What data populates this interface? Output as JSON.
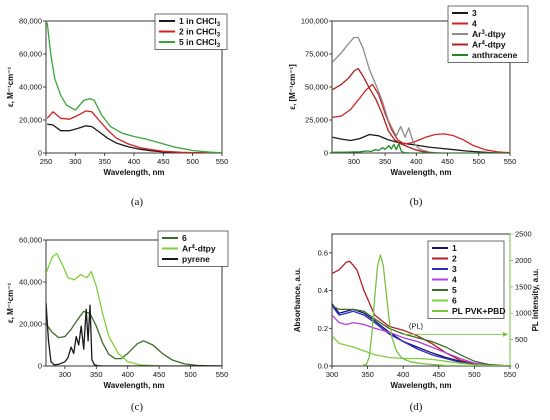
{
  "colors": {
    "black": "#1a1a1a",
    "red": "#d42020",
    "green": "#3aa63a",
    "gray": "#8c8c8c",
    "darkred": "#b02020",
    "darkgreen": "#1f8a1f",
    "olive": "#3d6b2a",
    "lime": "#7fd13a",
    "blue": "#2c2cc9",
    "navy": "#141466",
    "violet": "#b040d8",
    "lightgreen": "#7ecf3f",
    "plcolor": "#7ac142"
  },
  "chart_data": [
    {
      "panel": "(a)",
      "type": "line",
      "xlabel": "Wavelength, nm",
      "ylabel": "ε, M⁻¹cm⁻¹",
      "xlim": [
        250,
        550
      ],
      "ylim": [
        0,
        80000
      ],
      "xticks": [
        "250",
        "300",
        "350",
        "400",
        "450",
        "500",
        "550"
      ],
      "yticks": [
        "0",
        "20,000",
        "40,000",
        "60,000",
        "80,000"
      ],
      "legend": {
        "placement": "top-right"
      },
      "series": [
        {
          "name": "1 in CHCl3",
          "color": "black",
          "x": [
            252,
            262,
            275,
            290,
            305,
            318,
            328,
            340,
            355,
            370,
            390,
            410,
            430,
            450,
            480,
            510,
            550
          ],
          "y": [
            17500,
            17000,
            13500,
            13500,
            15000,
            16500,
            16000,
            13000,
            9000,
            6000,
            3800,
            2300,
            1300,
            700,
            300,
            100,
            0
          ]
        },
        {
          "name": "2 in CHCl3",
          "color": "red",
          "x": [
            252,
            262,
            275,
            290,
            305,
            318,
            328,
            340,
            355,
            370,
            390,
            410,
            430,
            450,
            480,
            510,
            550
          ],
          "y": [
            21000,
            25000,
            21000,
            20500,
            23000,
            25500,
            25000,
            20000,
            14000,
            9000,
            5500,
            3300,
            2000,
            1000,
            400,
            150,
            0
          ]
        },
        {
          "name": "5 in CHCl3",
          "color": "green",
          "x": [
            252,
            258,
            265,
            275,
            285,
            300,
            315,
            325,
            332,
            345,
            360,
            380,
            400,
            420,
            440,
            470,
            500,
            530,
            550
          ],
          "y": [
            79000,
            60000,
            45000,
            35000,
            29000,
            26000,
            32000,
            33000,
            32000,
            23000,
            16000,
            12000,
            10000,
            8500,
            6500,
            3500,
            1500,
            500,
            100
          ]
        }
      ]
    },
    {
      "panel": "(b)",
      "type": "line",
      "xlabel": "Wavelength, nm",
      "ylabel": "ε, [M⁻¹cm⁻¹]",
      "xlim": [
        265,
        550
      ],
      "ylim": [
        0,
        100000
      ],
      "xticks": [
        "300",
        "350",
        "400",
        "450",
        "500",
        "550"
      ],
      "yticks": [
        "0",
        "25,000",
        "50,000",
        "75,000",
        "100,000"
      ],
      "legend": {
        "placement": "top-right"
      },
      "series": [
        {
          "name": "3",
          "color": "black",
          "x": [
            266,
            280,
            295,
            310,
            325,
            340,
            355,
            370,
            385,
            400,
            420,
            440,
            460,
            480,
            500,
            520,
            550
          ],
          "y": [
            12000,
            10500,
            9500,
            11000,
            14000,
            13000,
            10000,
            8000,
            7000,
            6000,
            4500,
            3500,
            2500,
            1500,
            800,
            300,
            0
          ]
        },
        {
          "name": "4",
          "color": "red",
          "x": [
            266,
            280,
            295,
            310,
            320,
            330,
            340,
            350,
            360,
            370,
            380,
            390,
            400,
            415,
            430,
            445,
            460,
            475,
            490,
            510,
            530,
            550
          ],
          "y": [
            27000,
            28000,
            33000,
            42000,
            48000,
            52000,
            44000,
            30000,
            18000,
            10000,
            7000,
            7500,
            9000,
            12000,
            14000,
            14500,
            13000,
            10000,
            6000,
            2500,
            800,
            200
          ]
        },
        {
          "name": "Ar3-dtpy",
          "color": "gray",
          "x": [
            266,
            280,
            290,
            300,
            307,
            315,
            325,
            335,
            345,
            355,
            362,
            368,
            375,
            382,
            388,
            395,
            405,
            420,
            440
          ],
          "y": [
            69000,
            76000,
            82000,
            87500,
            87500,
            79000,
            63000,
            52000,
            40000,
            25000,
            18000,
            13000,
            20000,
            12000,
            19000,
            8000,
            3000,
            600,
            0
          ]
        },
        {
          "name": "Ar4-dtpy",
          "color": "darkred",
          "x": [
            266,
            280,
            292,
            300,
            307,
            315,
            325,
            335,
            345,
            355,
            365,
            375,
            385,
            395,
            410,
            430
          ],
          "y": [
            48000,
            52000,
            57000,
            62000,
            64000,
            58000,
            49000,
            41000,
            30000,
            17000,
            10000,
            7000,
            5000,
            3000,
            1000,
            0
          ]
        },
        {
          "name": "anthracene",
          "color": "darkgreen",
          "x": [
            266,
            290,
            310,
            320,
            328,
            334,
            340,
            346,
            350,
            356,
            360,
            364,
            368,
            372,
            376,
            380,
            390,
            550
          ],
          "y": [
            500,
            700,
            900,
            1500,
            1200,
            2500,
            2000,
            4000,
            2800,
            5500,
            3000,
            6500,
            2500,
            7000,
            1500,
            300,
            0,
            0
          ]
        }
      ]
    },
    {
      "panel": "(c)",
      "type": "line",
      "xlabel": "Wavelength, nm",
      "ylabel": "ε, M⁻¹cm⁻¹",
      "xlim": [
        270,
        550
      ],
      "ylim": [
        0,
        60000
      ],
      "xticks": [
        "300",
        "350",
        "400",
        "450",
        "500",
        "550"
      ],
      "yticks": [
        "0",
        "20,000",
        "40,000",
        "60,000"
      ],
      "legend": {
        "placement": "top-right"
      },
      "series": [
        {
          "name": "6",
          "color": "olive",
          "x": [
            270,
            280,
            290,
            300,
            310,
            320,
            330,
            340,
            350,
            360,
            370,
            380,
            390,
            400,
            415,
            425,
            440,
            455,
            470,
            490,
            510,
            530,
            550
          ],
          "y": [
            20000,
            16000,
            13500,
            14000,
            17500,
            22000,
            26000,
            25000,
            19000,
            11000,
            5500,
            3500,
            3500,
            6000,
            10500,
            12000,
            10000,
            6000,
            3000,
            1000,
            300,
            100,
            0
          ]
        },
        {
          "name": "Ar4-dtpy",
          "color": "lime",
          "x": [
            270,
            280,
            287,
            295,
            305,
            315,
            325,
            335,
            342,
            350,
            360,
            370,
            385,
            400,
            420,
            450
          ],
          "y": [
            44000,
            52000,
            53500,
            49000,
            42000,
            41000,
            43500,
            42000,
            45000,
            38000,
            25000,
            14000,
            6000,
            2000,
            500,
            0
          ]
        },
        {
          "name": "pyrene",
          "color": "black",
          "x": [
            270,
            274,
            278,
            283,
            290,
            300,
            305,
            310,
            314,
            318,
            322,
            326,
            330,
            334,
            337,
            340,
            343,
            347,
            352,
            360,
            380,
            550
          ],
          "y": [
            30000,
            12000,
            2000,
            500,
            800,
            2000,
            4000,
            9000,
            6000,
            14000,
            10000,
            19000,
            8000,
            27000,
            12000,
            29000,
            3000,
            600,
            200,
            0,
            0,
            0
          ]
        }
      ]
    },
    {
      "panel": "(d)",
      "type": "line",
      "xlabel": "Wavelength, nm",
      "ylabel": "Absorbance, a.u.",
      "ylabel2": "PL intensity, a.u.",
      "xlim": [
        300,
        550
      ],
      "ylim": [
        0,
        0.7
      ],
      "y2lim": [
        0,
        2500
      ],
      "xticks": [
        "300",
        "350",
        "400",
        "450",
        "500",
        "550"
      ],
      "yticks": [
        "0.0",
        "0.2",
        "0.4",
        "0.6"
      ],
      "y2ticks": [
        "0",
        "500",
        "1000",
        "1500",
        "2000",
        "2500"
      ],
      "legend": {
        "placement": "top-right"
      },
      "annotation": "(PL)",
      "series": [
        {
          "name": "1",
          "color": "navy",
          "x": [
            300,
            310,
            320,
            330,
            345,
            360,
            380,
            400,
            420,
            440,
            460,
            480,
            500,
            520,
            550
          ],
          "y": [
            0.33,
            0.28,
            0.29,
            0.3,
            0.28,
            0.24,
            0.18,
            0.13,
            0.1,
            0.07,
            0.045,
            0.025,
            0.01,
            0.004,
            0.0
          ]
        },
        {
          "name": "2",
          "color": "darkred",
          "x": [
            300,
            310,
            320,
            325,
            335,
            345,
            360,
            380,
            400,
            420,
            440,
            460,
            480,
            500,
            520,
            550
          ],
          "y": [
            0.49,
            0.51,
            0.55,
            0.555,
            0.51,
            0.4,
            0.27,
            0.21,
            0.19,
            0.16,
            0.12,
            0.07,
            0.03,
            0.01,
            0.003,
            0.0
          ]
        },
        {
          "name": "3",
          "color": "blue",
          "x": [
            300,
            310,
            320,
            330,
            345,
            360,
            380,
            400,
            420,
            440,
            460,
            480,
            500,
            520,
            550
          ],
          "y": [
            0.32,
            0.27,
            0.28,
            0.29,
            0.27,
            0.23,
            0.17,
            0.13,
            0.09,
            0.06,
            0.04,
            0.02,
            0.008,
            0.003,
            0.0
          ]
        },
        {
          "name": "4",
          "color": "violet",
          "x": [
            300,
            310,
            320,
            330,
            345,
            360,
            380,
            400,
            420,
            440,
            460,
            480,
            500,
            520,
            550
          ],
          "y": [
            0.27,
            0.23,
            0.22,
            0.23,
            0.22,
            0.2,
            0.18,
            0.15,
            0.13,
            0.1,
            0.07,
            0.04,
            0.015,
            0.005,
            0.0
          ]
        },
        {
          "name": "5",
          "color": "olive",
          "x": [
            300,
            310,
            320,
            330,
            345,
            360,
            380,
            400,
            420,
            440,
            460,
            480,
            500,
            520,
            550
          ],
          "y": [
            0.32,
            0.3,
            0.3,
            0.3,
            0.29,
            0.25,
            0.2,
            0.17,
            0.15,
            0.13,
            0.1,
            0.06,
            0.025,
            0.008,
            0.0
          ]
        },
        {
          "name": "6",
          "color": "lightgreen",
          "x": [
            300,
            310,
            320,
            330,
            345,
            360,
            380,
            400,
            420,
            440,
            460,
            480,
            500,
            520,
            550
          ],
          "y": [
            0.16,
            0.12,
            0.11,
            0.1,
            0.08,
            0.06,
            0.045,
            0.04,
            0.04,
            0.035,
            0.025,
            0.015,
            0.006,
            0.002,
            0.0
          ]
        },
        {
          "name": "PL PVK+PBD",
          "color": "plcolor",
          "axis": "right",
          "x": [
            340,
            348,
            352,
            356,
            360,
            364,
            368,
            372,
            376,
            380,
            384,
            390,
            398,
            410,
            430,
            460,
            500,
            550
          ],
          "y": [
            0,
            30,
            150,
            600,
            1300,
            1900,
            2100,
            1900,
            1400,
            900,
            550,
            300,
            150,
            80,
            40,
            10,
            0,
            0
          ]
        }
      ]
    }
  ]
}
